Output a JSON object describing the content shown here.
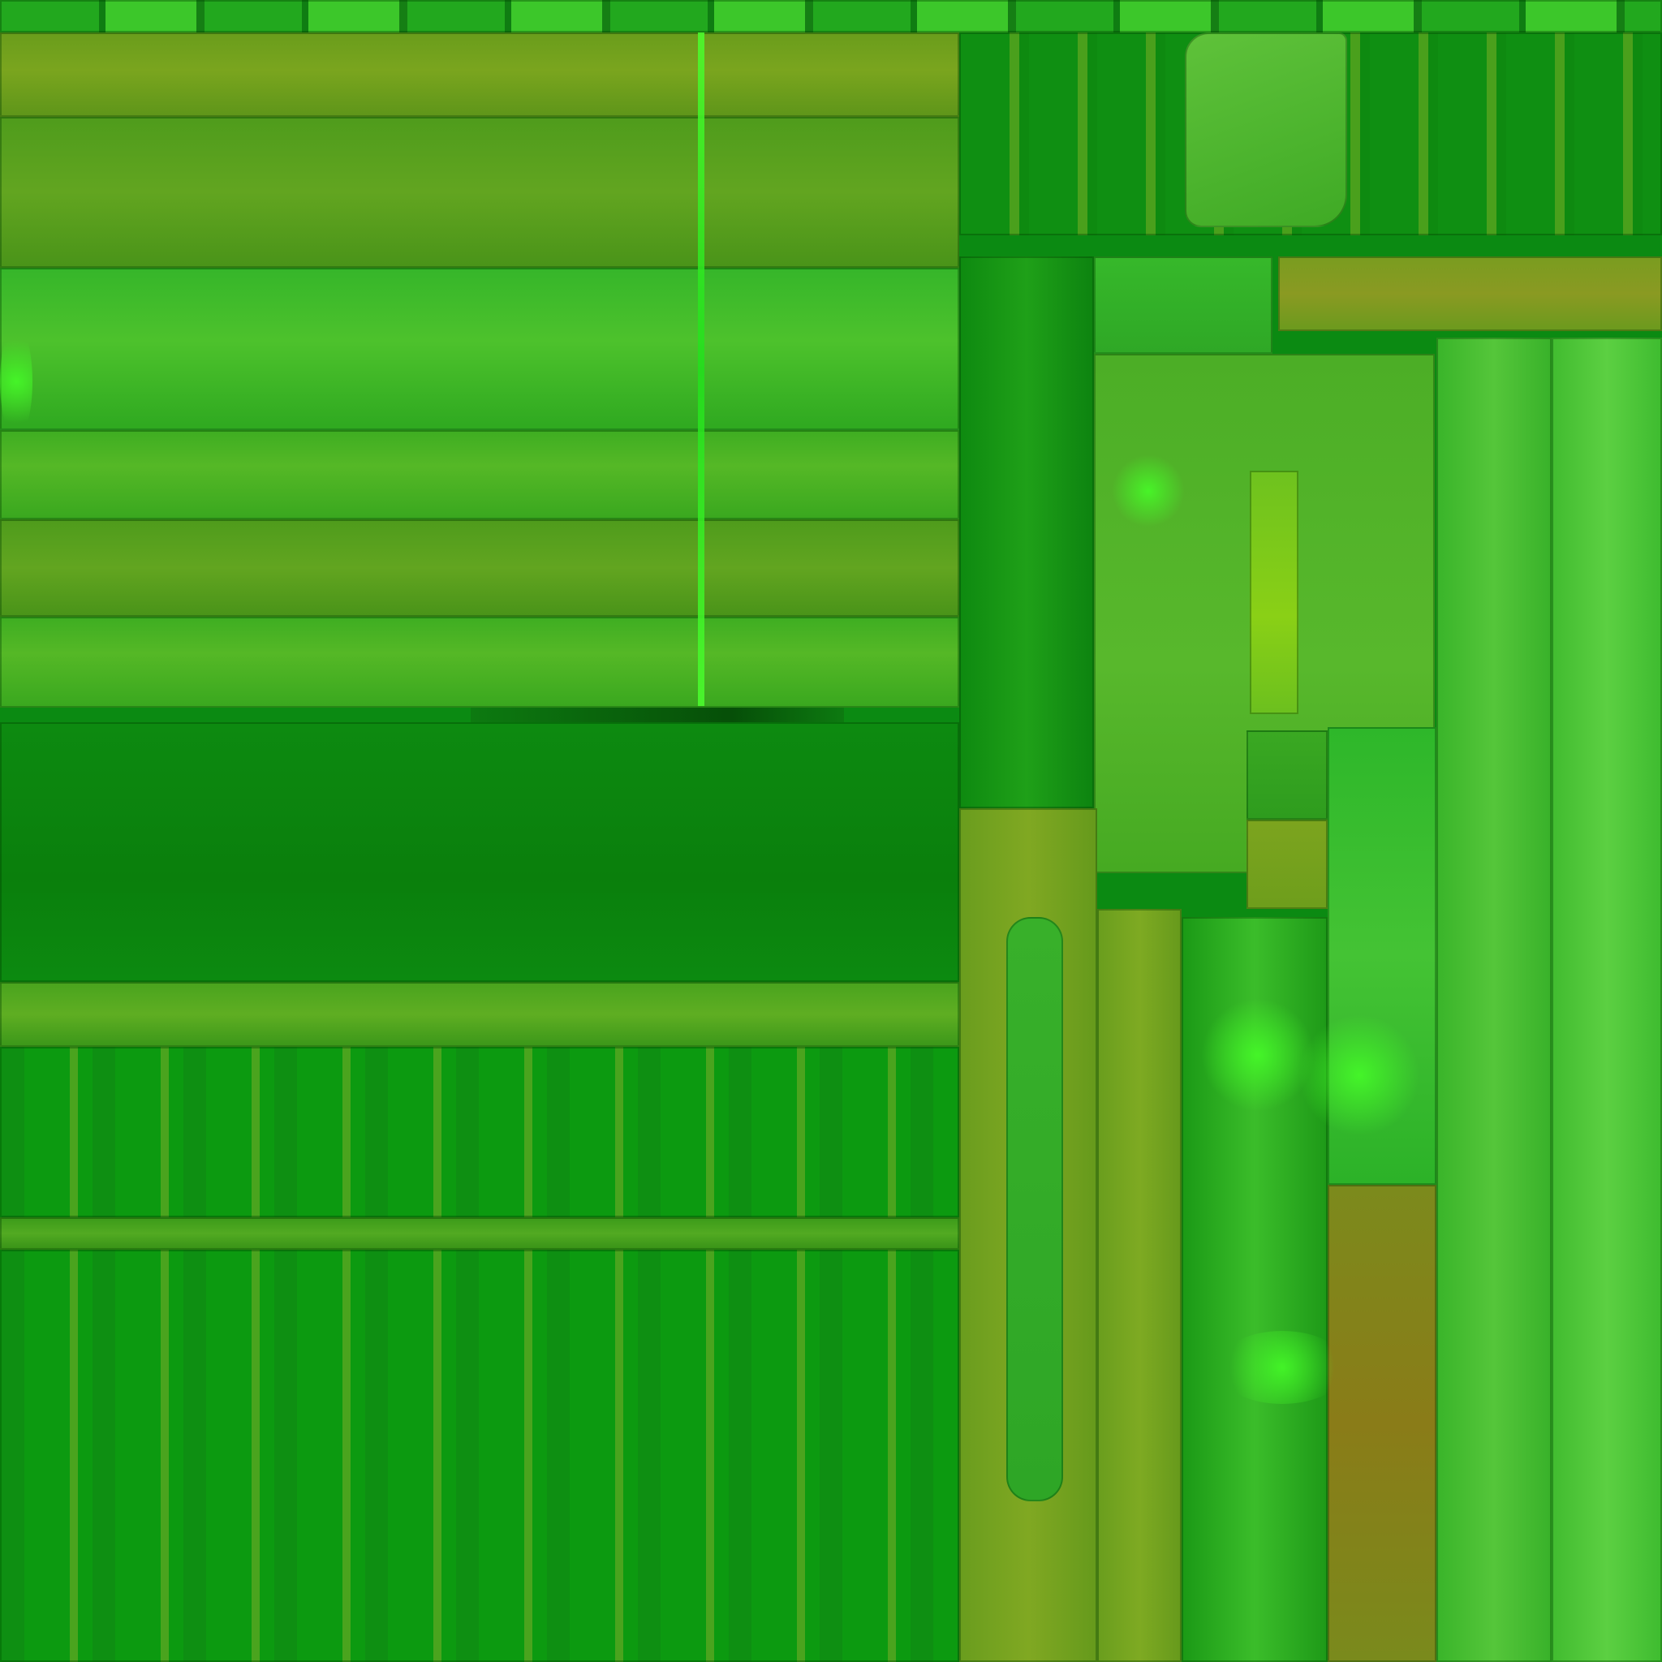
{
  "palette": {
    "base": "#0b8a12",
    "olive": "#6a9d1c",
    "bright": "#4cff2e",
    "dark": "#064f08",
    "brown": "#8a7c18"
  }
}
